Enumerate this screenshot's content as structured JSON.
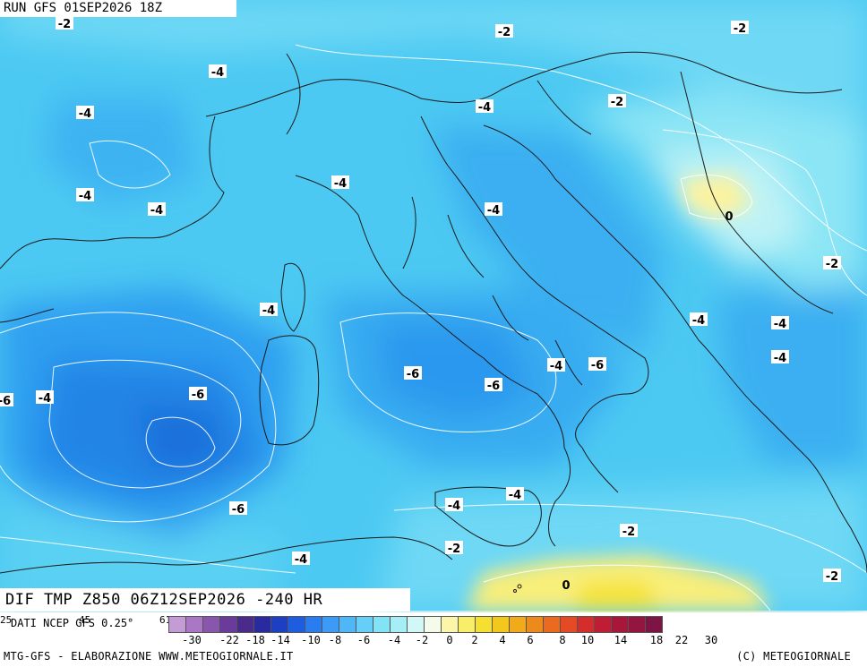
{
  "header": {
    "run_label": "RUN GFS 01SEP2026 18Z"
  },
  "title_bar": {
    "product": "DIF TMP Z850 06Z12SEP2026 -240 HR"
  },
  "source": {
    "data_label": "DATI NCEP GFS 0.25°"
  },
  "footer": {
    "left": "MTG-GFS - ELABORAZIONE WWW.METEOGIORNALE.IT",
    "right": "(C) METEOGIORNALE"
  },
  "colorbar": {
    "colors": [
      "#c59bd6",
      "#a977c4",
      "#8a56ad",
      "#6a3b9a",
      "#4a2b8c",
      "#2a2aa0",
      "#1c3fc4",
      "#1f5de0",
      "#2a7df0",
      "#3b9bf6",
      "#4fb6f8",
      "#66cff8",
      "#82e2f6",
      "#a6eef6",
      "#d2f7f7",
      "#f4fbea",
      "#fbf6a8",
      "#f8ee6a",
      "#f5e032",
      "#f2c81c",
      "#f0aa1a",
      "#ed8a1c",
      "#ea6a20",
      "#e44a24",
      "#d52c2c",
      "#bf1d34",
      "#a8173a",
      "#921640",
      "#7e1446"
    ],
    "tick_labels": [
      "-30",
      "-22",
      "-18",
      "-14",
      "-10",
      "-8",
      "-6",
      "-4",
      "-2",
      "0",
      "2",
      "4",
      "6",
      "8",
      "10",
      "14",
      "18",
      "22",
      "30"
    ],
    "left_stubs": [
      "25",
      "45",
      "61"
    ]
  },
  "contour_labels": [
    {
      "text": "-2"
    },
    {
      "text": "-2"
    },
    {
      "text": "-2"
    },
    {
      "text": "-4"
    },
    {
      "text": "-4"
    },
    {
      "text": "-2"
    },
    {
      "text": "-4"
    },
    {
      "text": "-4"
    },
    {
      "text": "-4"
    },
    {
      "text": "-4"
    },
    {
      "text": "0"
    },
    {
      "text": "-4"
    },
    {
      "text": "-2"
    },
    {
      "text": "-4"
    },
    {
      "text": "-4"
    },
    {
      "text": "-4"
    },
    {
      "text": "-4"
    },
    {
      "text": "-6"
    },
    {
      "text": "-6"
    },
    {
      "text": "-6"
    },
    {
      "text": "-6"
    },
    {
      "text": "-4"
    },
    {
      "text": "-4"
    },
    {
      "text": "-6"
    },
    {
      "text": "-6"
    },
    {
      "text": "-4"
    },
    {
      "text": "-4"
    },
    {
      "text": "-2"
    },
    {
      "text": "-2"
    },
    {
      "text": "-4"
    },
    {
      "text": "0"
    },
    {
      "text": "-2"
    }
  ]
}
